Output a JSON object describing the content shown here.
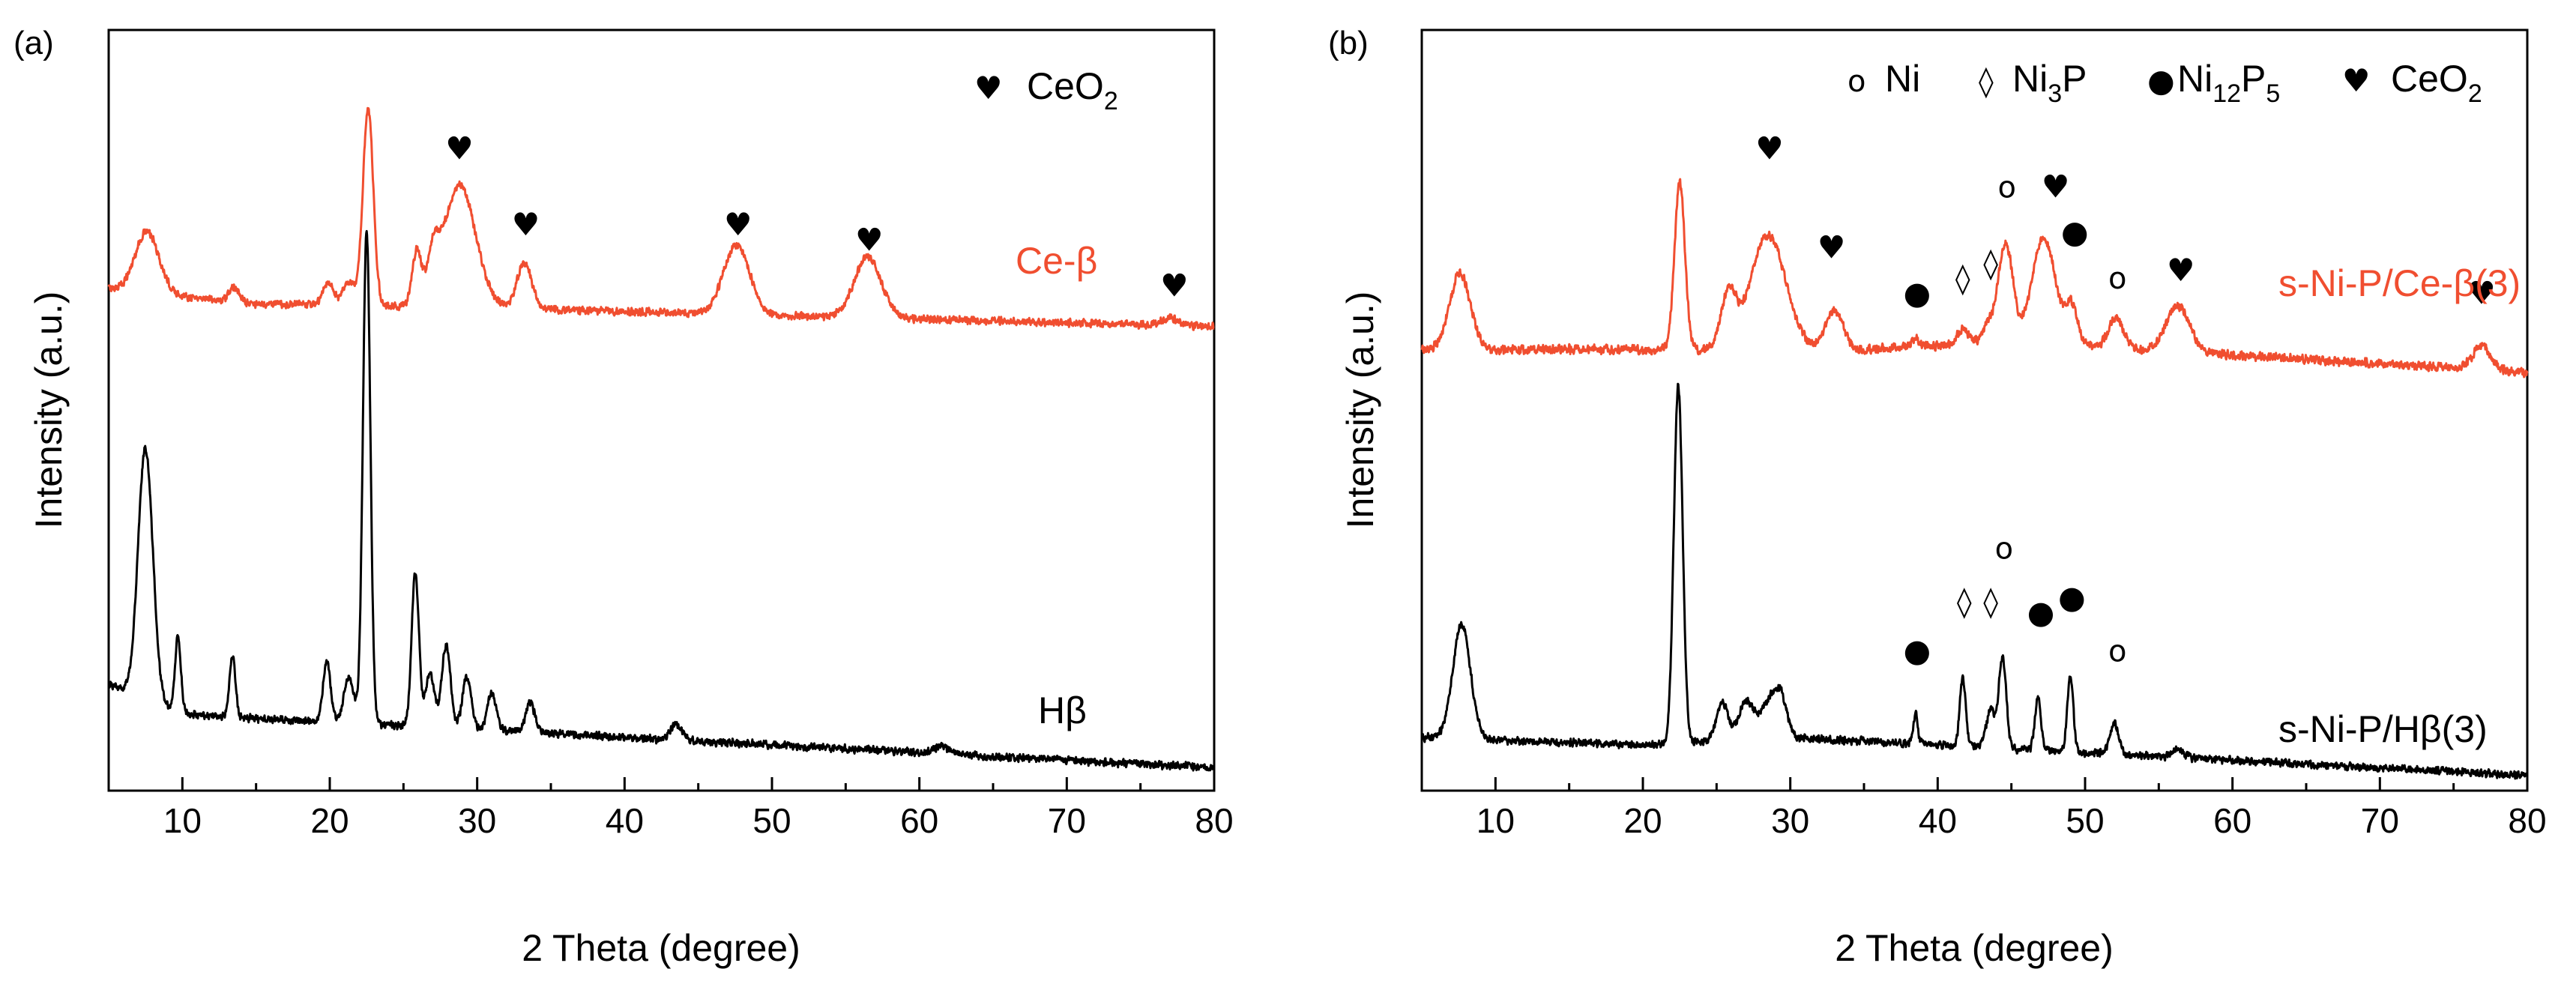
{
  "chart_data": [
    {
      "panel_label": "(a)",
      "type": "line",
      "xlabel": "2 Theta (degree)",
      "ylabel": "Intensity (a.u.)",
      "xlim": [
        5,
        80
      ],
      "xticks": [
        10,
        20,
        30,
        40,
        50,
        60,
        70,
        80
      ],
      "yticks_shown": false,
      "legend": [
        {
          "symbol": "♥",
          "marker": "heart",
          "label": "CeO",
          "sub": "2"
        }
      ],
      "series": [
        {
          "name": "Ce-β",
          "label": "Ce-β",
          "color": "#f04e30",
          "offset": 0.59,
          "noise": 0.006,
          "background": [
            [
              5,
              0.07
            ],
            [
              15,
              0.05
            ],
            [
              30,
              0.045
            ],
            [
              80,
              0.02
            ]
          ],
          "peaks": [
            [
              7.6,
              0.08,
              0.8
            ],
            [
              13.5,
              0.02,
              0.3
            ],
            [
              19.9,
              0.03,
              0.35
            ],
            [
              21.3,
              0.03,
              0.4
            ],
            [
              22.6,
              0.26,
              0.35
            ],
            [
              25.9,
              0.07,
              0.3
            ],
            [
              27.0,
              0.05,
              0.4
            ],
            [
              28.8,
              0.16,
              1.1
            ],
            [
              33.2,
              0.06,
              0.5
            ],
            [
              47.6,
              0.09,
              0.9
            ],
            [
              56.5,
              0.08,
              0.9
            ],
            [
              77.0,
              0.01,
              0.6
            ]
          ],
          "markers": [
            {
              "symbol": "♥",
              "x": 28.8,
              "y": 0.83
            },
            {
              "symbol": "♥",
              "x": 33.3,
              "y": 0.73
            },
            {
              "symbol": "♥",
              "x": 47.7,
              "y": 0.73
            },
            {
              "symbol": "♥",
              "x": 56.6,
              "y": 0.71
            },
            {
              "symbol": "♥",
              "x": 77.3,
              "y": 0.65
            }
          ]
        },
        {
          "name": "Hβ",
          "label": "Hβ",
          "color": "#000000",
          "offset": 0.0,
          "noise": 0.006,
          "background": [
            [
              5,
              0.14
            ],
            [
              10,
              0.1
            ],
            [
              20,
              0.09
            ],
            [
              30,
              0.08
            ],
            [
              80,
              0.03
            ]
          ],
          "peaks": [
            [
              7.5,
              0.33,
              0.5
            ],
            [
              9.7,
              0.1,
              0.2
            ],
            [
              13.4,
              0.08,
              0.2
            ],
            [
              19.8,
              0.08,
              0.25
            ],
            [
              21.3,
              0.06,
              0.35
            ],
            [
              22.5,
              0.65,
              0.25
            ],
            [
              25.8,
              0.2,
              0.25
            ],
            [
              26.8,
              0.07,
              0.3
            ],
            [
              27.9,
              0.11,
              0.3
            ],
            [
              29.3,
              0.07,
              0.3
            ],
            [
              31.0,
              0.05,
              0.3
            ],
            [
              33.6,
              0.04,
              0.3
            ],
            [
              43.5,
              0.02,
              0.4
            ],
            [
              61.5,
              0.01,
              0.5
            ]
          ],
          "markers": []
        }
      ]
    },
    {
      "panel_label": "(b)",
      "type": "line",
      "xlabel": "2 Theta (degree)",
      "ylabel": "Intensity (a.u.)",
      "xlim": [
        5,
        80
      ],
      "xticks": [
        10,
        20,
        30,
        40,
        50,
        60,
        70,
        80
      ],
      "yticks_shown": false,
      "legend": [
        {
          "symbol": "o",
          "marker": "circle-open",
          "label": "Ni",
          "sub": ""
        },
        {
          "symbol": "◊",
          "marker": "diamond-open",
          "label": "Ni",
          "sub": "3",
          "suffix": "P"
        },
        {
          "symbol": "●",
          "marker": "circle-filled",
          "label": "Ni",
          "sub": "12",
          "suffix": "P",
          "sub2": "5"
        },
        {
          "symbol": "♥",
          "marker": "heart",
          "label": "CeO",
          "sub": "2"
        }
      ],
      "series": [
        {
          "name": "s-Ni-P/Ce-β(3)",
          "label": "s-Ni-P/Ce-β(3)",
          "color": "#f04e30",
          "offset": 0.53,
          "noise": 0.007,
          "background": [
            [
              5,
              0.05
            ],
            [
              20,
              0.05
            ],
            [
              35,
              0.05
            ],
            [
              45,
              0.06
            ],
            [
              80,
              0.02
            ]
          ],
          "peaks": [
            [
              7.6,
              0.1,
              0.7
            ],
            [
              22.5,
              0.22,
              0.35
            ],
            [
              25.8,
              0.07,
              0.5
            ],
            [
              28.5,
              0.15,
              1.2
            ],
            [
              33.0,
              0.05,
              0.6
            ],
            [
              38.5,
              0.01,
              0.3
            ],
            [
              41.7,
              0.02,
              0.4
            ],
            [
              43.4,
              0.02,
              0.4
            ],
            [
              44.6,
              0.13,
              0.5
            ],
            [
              47.2,
              0.14,
              0.8
            ],
            [
              49.1,
              0.05,
              0.4
            ],
            [
              52.1,
              0.04,
              0.5
            ],
            [
              56.3,
              0.06,
              0.8
            ],
            [
              76.9,
              0.03,
              0.6
            ]
          ],
          "markers": [
            {
              "symbol": "♥",
              "x": 28.6,
              "y": 0.83
            },
            {
              "symbol": "♥",
              "x": 32.8,
              "y": 0.7
            },
            {
              "symbol": "●",
              "x": 38.6,
              "y": 0.64
            },
            {
              "symbol": "◊",
              "x": 41.7,
              "y": 0.66
            },
            {
              "symbol": "◊",
              "x": 43.6,
              "y": 0.68
            },
            {
              "symbol": "o",
              "x": 44.7,
              "y": 0.78
            },
            {
              "symbol": "♥",
              "x": 48.0,
              "y": 0.78
            },
            {
              "symbol": "●",
              "x": 49.3,
              "y": 0.72
            },
            {
              "symbol": "o",
              "x": 52.2,
              "y": 0.66
            },
            {
              "symbol": "♥",
              "x": 56.5,
              "y": 0.67
            },
            {
              "symbol": "♥",
              "x": 76.9,
              "y": 0.64
            }
          ]
        },
        {
          "name": "s-Ni-P/Hβ(3)",
          "label": "s-Ni-P/Hβ(3)",
          "color": "#000000",
          "offset": 0.0,
          "noise": 0.006,
          "background": [
            [
              5,
              0.07
            ],
            [
              20,
              0.06
            ],
            [
              30,
              0.07
            ],
            [
              40,
              0.06
            ],
            [
              80,
              0.02
            ]
          ],
          "peaks": [
            [
              7.7,
              0.15,
              0.6
            ],
            [
              22.4,
              0.47,
              0.3
            ],
            [
              25.4,
              0.05,
              0.4
            ],
            [
              27.0,
              0.05,
              0.5
            ],
            [
              28.6,
              0.05,
              0.6
            ],
            [
              29.4,
              0.04,
              0.4
            ],
            [
              38.5,
              0.04,
              0.15
            ],
            [
              41.7,
              0.09,
              0.2
            ],
            [
              43.6,
              0.05,
              0.3
            ],
            [
              44.4,
              0.12,
              0.25
            ],
            [
              46.8,
              0.07,
              0.2
            ],
            [
              49.0,
              0.1,
              0.2
            ],
            [
              52.0,
              0.04,
              0.3
            ],
            [
              56.3,
              0.01,
              0.4
            ]
          ],
          "markers": [
            {
              "symbol": "●",
              "x": 38.6,
              "y": 0.17
            },
            {
              "symbol": "◊",
              "x": 41.8,
              "y": 0.235
            },
            {
              "symbol": "◊",
              "x": 43.6,
              "y": 0.235
            },
            {
              "symbol": "o",
              "x": 44.5,
              "y": 0.305
            },
            {
              "symbol": "●",
              "x": 47.0,
              "y": 0.22
            },
            {
              "symbol": "●",
              "x": 49.1,
              "y": 0.24
            },
            {
              "symbol": "o",
              "x": 52.2,
              "y": 0.17
            }
          ]
        }
      ]
    }
  ]
}
